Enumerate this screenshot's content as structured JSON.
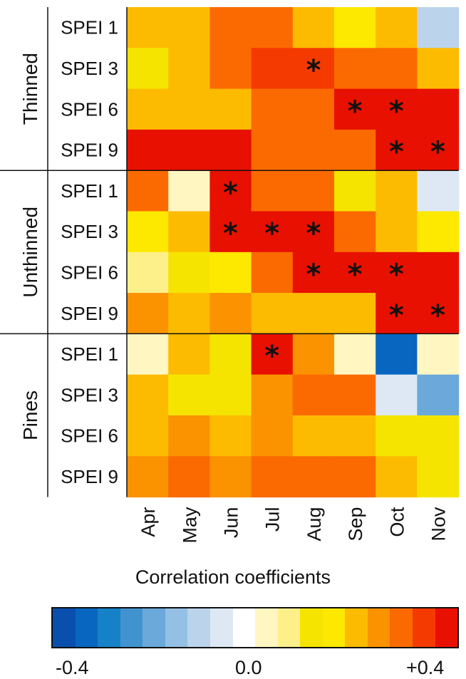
{
  "chart_data": {
    "type": "heatmap",
    "x_categories": [
      "Apr",
      "May",
      "Jun",
      "Jul",
      "Aug",
      "Sep",
      "Oct",
      "Nov"
    ],
    "groups": [
      {
        "name": "Thinned",
        "rows": [
          {
            "label": "SPEI 1",
            "values": [
              0.19,
              0.19,
              0.31,
              0.3,
              0.18,
              0.16,
              0.18,
              -0.13
            ],
            "significant": [
              false,
              false,
              false,
              false,
              false,
              false,
              false,
              false
            ]
          },
          {
            "label": "SPEI 3",
            "values": [
              0.1,
              0.18,
              0.31,
              0.35,
              0.35,
              0.31,
              0.27,
              0.18
            ],
            "significant": [
              false,
              false,
              false,
              false,
              true,
              false,
              false,
              false
            ]
          },
          {
            "label": "SPEI 6",
            "values": [
              0.19,
              0.19,
              0.19,
              0.27,
              0.31,
              0.4,
              0.4,
              0.37
            ],
            "significant": [
              false,
              false,
              false,
              false,
              false,
              true,
              true,
              false
            ]
          },
          {
            "label": "SPEI 9",
            "values": [
              0.37,
              0.37,
              0.38,
              0.27,
              0.27,
              0.27,
              0.4,
              0.38
            ],
            "significant": [
              false,
              false,
              false,
              false,
              false,
              false,
              true,
              true
            ]
          }
        ]
      },
      {
        "name": "Unthinned",
        "rows": [
          {
            "label": "SPEI 1",
            "values": [
              0.31,
              0.02,
              0.4,
              0.27,
              0.27,
              0.12,
              0.18,
              -0.06
            ],
            "significant": [
              false,
              false,
              true,
              false,
              false,
              false,
              false,
              false
            ]
          },
          {
            "label": "SPEI 3",
            "values": [
              0.15,
              0.18,
              0.4,
              0.4,
              0.4,
              0.29,
              0.22,
              0.15
            ],
            "significant": [
              false,
              false,
              true,
              true,
              true,
              false,
              false,
              false
            ]
          },
          {
            "label": "SPEI 6",
            "values": [
              0.06,
              0.1,
              0.15,
              0.29,
              0.4,
              0.4,
              0.4,
              0.37
            ],
            "significant": [
              false,
              false,
              false,
              false,
              true,
              true,
              true,
              false
            ]
          },
          {
            "label": "SPEI 9",
            "values": [
              0.24,
              0.22,
              0.24,
              0.19,
              0.19,
              0.19,
              0.4,
              0.4
            ],
            "significant": [
              false,
              false,
              false,
              false,
              false,
              false,
              true,
              true
            ]
          }
        ]
      },
      {
        "name": "Pines",
        "rows": [
          {
            "label": "SPEI 1",
            "values": [
              0.0,
              0.18,
              0.1,
              0.4,
              0.26,
              0.04,
              -0.35,
              0.03
            ],
            "significant": [
              false,
              false,
              false,
              true,
              false,
              false,
              false,
              false
            ]
          },
          {
            "label": "SPEI 3",
            "values": [
              0.18,
              0.1,
              0.1,
              0.24,
              0.29,
              0.31,
              -0.06,
              -0.19
            ],
            "significant": [
              false,
              false,
              false,
              false,
              false,
              false,
              false,
              false
            ]
          },
          {
            "label": "SPEI 6",
            "values": [
              0.22,
              0.24,
              0.22,
              0.26,
              0.22,
              0.22,
              0.1,
              0.1
            ],
            "significant": [
              false,
              false,
              false,
              false,
              false,
              false,
              false,
              false
            ]
          },
          {
            "label": "SPEI 9",
            "values": [
              0.26,
              0.29,
              0.26,
              0.29,
              0.31,
              0.31,
              0.18,
              0.1
            ],
            "significant": [
              false,
              false,
              false,
              false,
              false,
              false,
              false,
              false
            ]
          }
        ]
      }
    ],
    "significance_marker": "*",
    "colorbar": {
      "title": "Correlation coefficients",
      "range": [
        -0.4,
        0.4
      ],
      "tick_labels": [
        "-0.4",
        "0.0",
        "+0.4"
      ],
      "colors": [
        "#0a4fae",
        "#0866c0",
        "#1582c8",
        "#4193d0",
        "#6aa9da",
        "#93c0e4",
        "#bbd4ec",
        "#dde8f4",
        "#ffffff",
        "#fff6c2",
        "#fdf08a",
        "#f5e400",
        "#fde800",
        "#fdbb00",
        "#fb9200",
        "#fb6a00",
        "#f53a00",
        "#e81000"
      ]
    }
  }
}
